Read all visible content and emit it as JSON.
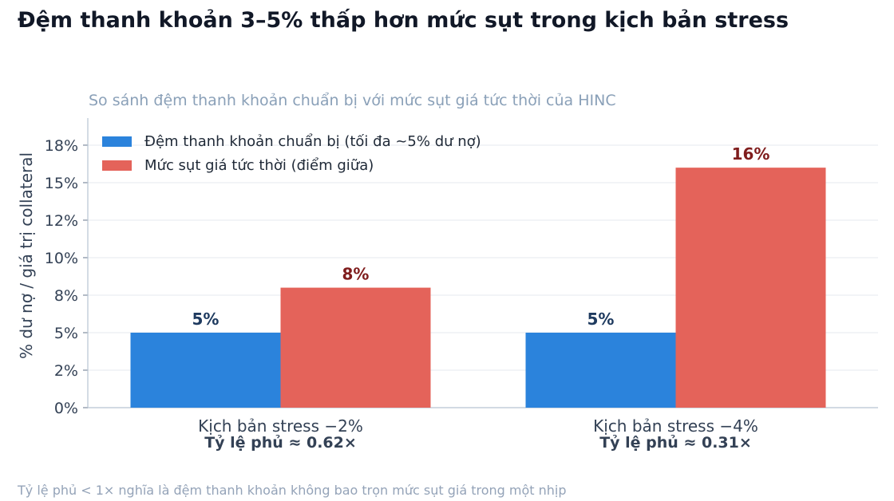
{
  "title": "Đệm thanh khoản 3–5% thấp hơn mức sụt trong kịch bản stress",
  "subtitle": "So sánh đệm thanh khoản chuẩn bị với mức sụt giá tức thời của HINC",
  "footnote": "Tỷ lệ phủ < 1× nghĩa là đệm thanh khoản không bao trọn mức sụt giá trong một nhịp",
  "chart_data": {
    "type": "bar",
    "ylabel": "% dư nợ / giá trị collateral",
    "xlabel": "",
    "ylim": [
      0,
      19.2
    ],
    "yticks": [
      0,
      2.5,
      5,
      7.5,
      10,
      12.5,
      15,
      17.5
    ],
    "ytick_labels": [
      "0%",
      "2%",
      "5%",
      "8%",
      "10%",
      "12%",
      "15%",
      "18%"
    ],
    "grid": true,
    "legend": "top-left",
    "categories": [
      "Kịch bản stress −2%",
      "Kịch bản stress −4%"
    ],
    "category_notes": [
      "Tỷ lệ phủ ≈ 0.62×",
      "Tỷ lệ phủ ≈ 0.31×"
    ],
    "series": [
      {
        "name": "Đệm thanh khoản chuẩn bị (tối đa ~5% dư nợ)",
        "color": "#2b83dc",
        "label_color": "#1e3a5f",
        "values": [
          5,
          5
        ],
        "labels": [
          "5%",
          "5%"
        ]
      },
      {
        "name": "Mức sụt giá tức thời (điểm giữa)",
        "color": "#e4635a",
        "label_color": "#7f1d1d",
        "values": [
          8,
          16
        ],
        "labels": [
          "8%",
          "16%"
        ]
      }
    ]
  }
}
